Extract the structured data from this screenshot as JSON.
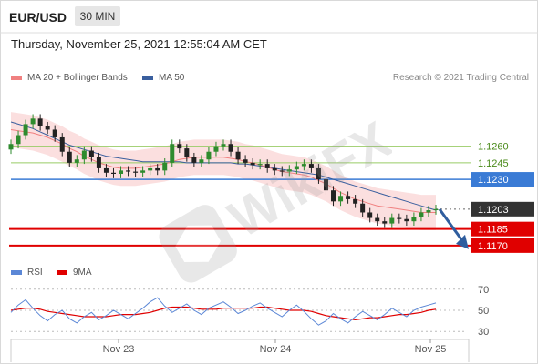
{
  "header": {
    "pair": "EUR/USD",
    "timeframe": "30 MIN",
    "datetime": "Thursday, November 25, 2021 12:55:04 AM CET"
  },
  "legend": {
    "ma20_label": "MA 20 + Bollinger Bands",
    "ma50_label": "MA 50",
    "credit": "Research © 2021 Trading Central",
    "rsi_label": "RSI",
    "ma9_label": "9MA"
  },
  "watermark": "WikiFX",
  "colors": {
    "ma20": "#f08080",
    "ma50": "#3a5f9e",
    "support": "#e00000",
    "resistance": "#99cc66",
    "pivot": "#3a7bd5",
    "current": "#333333",
    "arrow": "#2f5d9e",
    "rsi": "#5b87d6",
    "rsi_ma": "#e00000"
  },
  "chart_data": [
    {
      "type": "candlestick",
      "ylim": [
        1.116,
        1.131
      ],
      "x_labels": [
        "Nov 23",
        "Nov 24",
        "Nov 25"
      ],
      "levels": [
        {
          "value": 1.126,
          "label": "1.1260",
          "kind": "resistance"
        },
        {
          "value": 1.1245,
          "label": "1.1245",
          "kind": "resistance"
        },
        {
          "value": 1.123,
          "label": "1.1230",
          "kind": "pivot"
        },
        {
          "value": 1.1203,
          "label": "1.1203",
          "kind": "current"
        },
        {
          "value": 1.1185,
          "label": "1.1185",
          "kind": "support"
        },
        {
          "value": 1.117,
          "label": "1.1170",
          "kind": "support"
        }
      ],
      "close": [
        1.1262,
        1.127,
        1.128,
        1.1285,
        1.1278,
        1.1275,
        1.1268,
        1.1255,
        1.1245,
        1.1248,
        1.1256,
        1.125,
        1.124,
        1.1236,
        1.1235,
        1.1238,
        1.1237,
        1.1236,
        1.1238,
        1.124,
        1.1238,
        1.1245,
        1.1262,
        1.1258,
        1.125,
        1.1245,
        1.1248,
        1.1255,
        1.126,
        1.1262,
        1.1255,
        1.1248,
        1.1245,
        1.1243,
        1.1244,
        1.124,
        1.1238,
        1.1237,
        1.1239,
        1.1242,
        1.1244,
        1.124,
        1.123,
        1.122,
        1.121,
        1.1215,
        1.1212,
        1.1208,
        1.12,
        1.1195,
        1.1192,
        1.119,
        1.1195,
        1.1194,
        1.1192,
        1.1196,
        1.12,
        1.1202,
        1.1203
      ],
      "ma20": [
        1.1275,
        1.1274,
        1.1273,
        1.1272,
        1.127,
        1.1268,
        1.1265,
        1.1262,
        1.1258,
        1.1255,
        1.1251,
        1.1248,
        1.1245,
        1.1243,
        1.1241,
        1.124,
        1.124,
        1.124,
        1.1241,
        1.1242,
        1.1243,
        1.1244,
        1.1246,
        1.1248,
        1.1249,
        1.125,
        1.125,
        1.125,
        1.125,
        1.125,
        1.1249,
        1.1248,
        1.1246,
        1.1245,
        1.1243,
        1.1241,
        1.1239,
        1.1237,
        1.1236,
        1.1235,
        1.1234,
        1.1232,
        1.1229,
        1.1226,
        1.1222,
        1.1218,
        1.1215,
        1.1212,
        1.121,
        1.1208,
        1.1206,
        1.1205,
        1.1204,
        1.1203,
        1.1202,
        1.1201,
        1.12,
        1.12,
        1.12
      ],
      "ma50": [
        1.1282,
        1.128,
        1.1278,
        1.1276,
        1.1273,
        1.127,
        1.1267,
        1.1264,
        1.1261,
        1.1259,
        1.1257,
        1.1255,
        1.1253,
        1.1251,
        1.125,
        1.1249,
        1.1248,
        1.1247,
        1.1246,
        1.1246,
        1.1246,
        1.1246,
        1.1246,
        1.1246,
        1.1245,
        1.1245,
        1.1245,
        1.1245,
        1.1245,
        1.1245,
        1.1245,
        1.1244,
        1.1244,
        1.1243,
        1.1242,
        1.1241,
        1.124,
        1.1239,
        1.1238,
        1.1237,
        1.1236,
        1.1235,
        1.1234,
        1.1232,
        1.123,
        1.1228,
        1.1226,
        1.1224,
        1.1222,
        1.122,
        1.1218,
        1.1216,
        1.1214,
        1.1212,
        1.121,
        1.1208,
        1.1206,
        1.1204,
        1.1202
      ],
      "forecast": {
        "from": 1.1203,
        "to": 1.117
      }
    },
    {
      "type": "line",
      "name": "RSI panel",
      "ylim": [
        25,
        75
      ],
      "ticks": [
        70,
        50,
        30
      ],
      "series": [
        {
          "name": "RSI",
          "values": [
            48,
            55,
            60,
            52,
            45,
            40,
            46,
            50,
            42,
            38,
            44,
            48,
            41,
            45,
            50,
            46,
            42,
            47,
            52,
            58,
            62,
            54,
            48,
            52,
            56,
            50,
            46,
            52,
            55,
            58,
            53,
            47,
            50,
            54,
            57,
            52,
            48,
            44,
            50,
            55,
            49,
            42,
            36,
            40,
            47,
            42,
            38,
            44,
            49,
            45,
            41,
            46,
            52,
            48,
            44,
            50,
            53,
            55,
            57
          ]
        },
        {
          "name": "9MA",
          "values": [
            50,
            51,
            52,
            52,
            51,
            49,
            48,
            47,
            46,
            45,
            44,
            44,
            44,
            44,
            45,
            46,
            46,
            46,
            47,
            48,
            50,
            52,
            53,
            53,
            53,
            52,
            51,
            51,
            51,
            52,
            52,
            52,
            52,
            52,
            53,
            53,
            52,
            51,
            50,
            50,
            50,
            49,
            47,
            45,
            44,
            43,
            42,
            41,
            42,
            43,
            43,
            44,
            45,
            46,
            46,
            47,
            48,
            50,
            51
          ]
        }
      ]
    }
  ]
}
